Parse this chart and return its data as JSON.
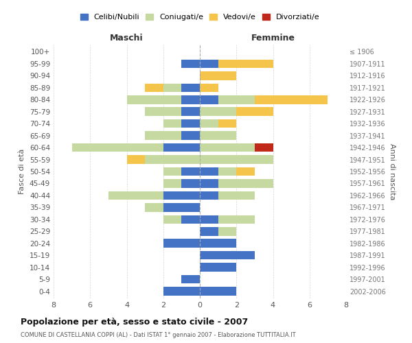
{
  "age_groups": [
    "100+",
    "95-99",
    "90-94",
    "85-89",
    "80-84",
    "75-79",
    "70-74",
    "65-69",
    "60-64",
    "55-59",
    "50-54",
    "45-49",
    "40-44",
    "35-39",
    "30-34",
    "25-29",
    "20-24",
    "15-19",
    "10-14",
    "5-9",
    "0-4"
  ],
  "birth_years": [
    "≤ 1906",
    "1907-1911",
    "1912-1916",
    "1917-1921",
    "1922-1926",
    "1927-1931",
    "1932-1936",
    "1937-1941",
    "1942-1946",
    "1947-1951",
    "1952-1956",
    "1957-1961",
    "1962-1966",
    "1967-1971",
    "1972-1976",
    "1977-1981",
    "1982-1986",
    "1987-1991",
    "1992-1996",
    "1997-2001",
    "2002-2006"
  ],
  "colors": {
    "celibi": "#4472c4",
    "coniugati": "#c5d9a0",
    "vedovi": "#f5c44a",
    "divorziati": "#c0281a"
  },
  "maschi": {
    "celibi": [
      0,
      1,
      0,
      1,
      1,
      1,
      1,
      1,
      2,
      0,
      1,
      1,
      2,
      2,
      1,
      0,
      2,
      0,
      0,
      1,
      2
    ],
    "coniugati": [
      0,
      0,
      0,
      1,
      3,
      2,
      1,
      2,
      5,
      3,
      1,
      1,
      3,
      1,
      1,
      0,
      0,
      0,
      0,
      0,
      0
    ],
    "vedovi": [
      0,
      0,
      0,
      1,
      0,
      0,
      0,
      0,
      0,
      1,
      0,
      0,
      0,
      0,
      0,
      0,
      0,
      0,
      0,
      0,
      0
    ],
    "divorziati": [
      0,
      0,
      0,
      0,
      0,
      0,
      0,
      0,
      0,
      0,
      0,
      0,
      0,
      0,
      0,
      0,
      0,
      0,
      0,
      0,
      0
    ]
  },
  "femmine": {
    "celibi": [
      0,
      1,
      0,
      0,
      1,
      0,
      0,
      0,
      0,
      0,
      1,
      1,
      1,
      0,
      1,
      1,
      2,
      3,
      2,
      0,
      2
    ],
    "coniugati": [
      0,
      0,
      0,
      0,
      2,
      2,
      1,
      2,
      3,
      4,
      1,
      3,
      2,
      0,
      2,
      1,
      0,
      0,
      0,
      0,
      0
    ],
    "vedovi": [
      0,
      3,
      2,
      1,
      4,
      2,
      1,
      0,
      0,
      0,
      1,
      0,
      0,
      0,
      0,
      0,
      0,
      0,
      0,
      0,
      0
    ],
    "divorziati": [
      0,
      0,
      0,
      0,
      0,
      0,
      0,
      0,
      1,
      0,
      0,
      0,
      0,
      0,
      0,
      0,
      0,
      0,
      0,
      0,
      0
    ]
  },
  "xlim": 8,
  "title": "Popolazione per età, sesso e stato civile - 2007",
  "subtitle": "COMUNE DI CASTELLANIA COPPI (AL) - Dati ISTAT 1° gennaio 2007 - Elaborazione TUTTITALIA.IT",
  "ylabel": "Fasce di età",
  "ylabel_right": "Anni di nascita",
  "xlabel_left": "Maschi",
  "xlabel_right": "Femmine"
}
